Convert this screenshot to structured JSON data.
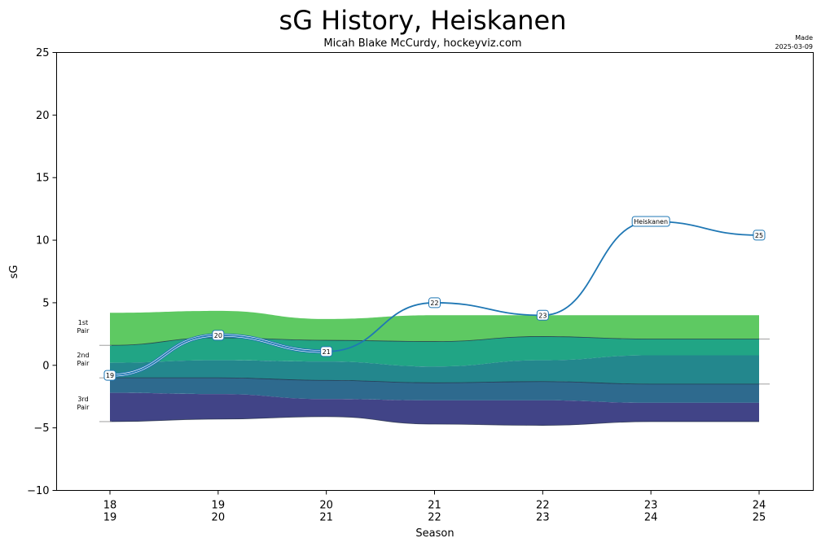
{
  "chart_data": {
    "type": "line",
    "title": "sG History, Heiskanen",
    "subtitle": "Micah Blake McCurdy, hockeyviz.com",
    "made_label": "Made",
    "made_date": "2025-03-09",
    "xlabel": "Season",
    "ylabel": "sG",
    "ylim": [
      -10,
      25
    ],
    "yticks": [
      -10,
      -5,
      0,
      5,
      10,
      15,
      20,
      25
    ],
    "ytick_labels": [
      "−10",
      "−5",
      "0",
      "5",
      "10",
      "15",
      "20",
      "25"
    ],
    "seasons": [
      {
        "top": "18",
        "bottom": "19"
      },
      {
        "top": "19",
        "bottom": "20"
      },
      {
        "top": "20",
        "bottom": "21"
      },
      {
        "top": "21",
        "bottom": "22"
      },
      {
        "top": "22",
        "bottom": "23"
      },
      {
        "top": "23",
        "bottom": "24"
      },
      {
        "top": "24",
        "bottom": "25"
      }
    ],
    "bands": {
      "pair1_top": [
        4.2,
        4.35,
        3.7,
        4.0,
        4.0,
        4.0,
        4.0
      ],
      "pair1_line": [
        1.6,
        2.2,
        2.0,
        1.9,
        2.3,
        2.1,
        2.1
      ],
      "pair2_mid": [
        0.2,
        0.4,
        0.3,
        -0.1,
        0.4,
        0.8,
        0.8
      ],
      "pair2_line": [
        -1.0,
        -1.0,
        -1.2,
        -1.4,
        -1.3,
        -1.5,
        -1.5
      ],
      "pair3_mid": [
        -2.2,
        -2.3,
        -2.7,
        -2.8,
        -2.8,
        -3.0,
        -3.0
      ],
      "pair3_bottom": [
        -4.5,
        -4.3,
        -4.1,
        -4.7,
        -4.8,
        -4.5,
        -4.5
      ]
    },
    "band_colors": [
      "#5ec962",
      "#21a585",
      "#23878d",
      "#2e6a8e",
      "#414487"
    ],
    "band_labels": [
      {
        "line1": "1st",
        "line2": "Pair",
        "y": 3.1
      },
      {
        "line1": "2nd",
        "line2": "Pair",
        "y": 0.5
      },
      {
        "line1": "3rd",
        "line2": "Pair",
        "y": -3.0
      }
    ],
    "ref_lines": [
      1.6,
      -1.0,
      -4.5,
      2.1,
      -1.5
    ],
    "series": [
      {
        "name": "Heiskanen",
        "color": "#1f77b4",
        "values": [
          -0.8,
          2.4,
          1.1,
          5.0,
          4.0,
          11.5,
          10.4
        ],
        "point_labels": [
          "19",
          "20",
          "21",
          "22",
          "23",
          "Heiskanen",
          "25"
        ]
      }
    ]
  }
}
